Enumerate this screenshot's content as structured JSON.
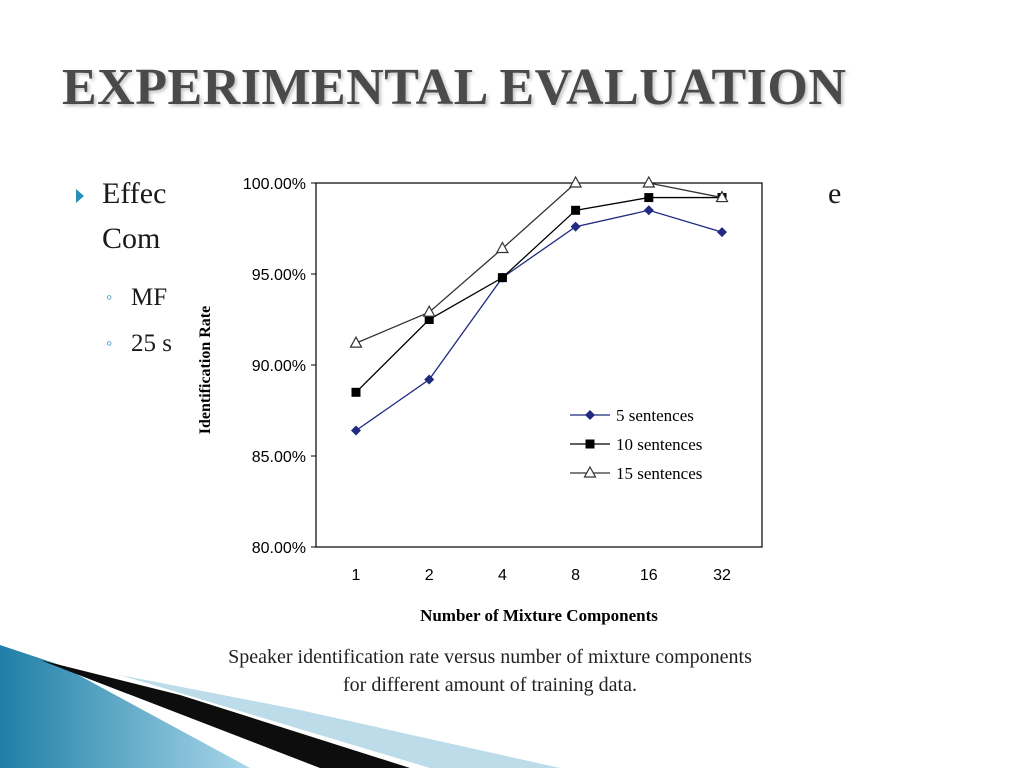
{
  "slide": {
    "title": "EXPERIMENTAL EVALUATION",
    "bullet_main_start": "Effec",
    "bullet_main_tail": "e",
    "bullet_main_line2": "Com",
    "sub_bullets": [
      "MF",
      "25 s"
    ],
    "colors": {
      "title": "#4a4a4a",
      "accent": "#2a8fb8",
      "decor_blue": "#1f7fa6"
    }
  },
  "chart_data": {
    "type": "line",
    "x": [
      "1",
      "2",
      "4",
      "8",
      "16",
      "32"
    ],
    "series": [
      {
        "name": "5 sentences",
        "marker": "diamond",
        "color": "#1f2a80",
        "values": [
          86.4,
          89.2,
          94.8,
          97.6,
          98.5,
          97.3
        ]
      },
      {
        "name": "10 sentences",
        "marker": "square",
        "color": "#000000",
        "values": [
          88.5,
          92.5,
          94.8,
          98.5,
          99.2,
          99.2
        ]
      },
      {
        "name": "15 sentences",
        "marker": "triangle",
        "color": "#333333",
        "values": [
          91.2,
          92.9,
          96.4,
          100.0,
          100.0,
          99.2
        ]
      }
    ],
    "yticks": [
      "80.00%",
      "85.00%",
      "90.00%",
      "95.00%",
      "100.00%"
    ],
    "ylim": [
      80,
      100
    ],
    "xlabel": "Number of Mixture Components",
    "ylabel": "Identification Rate",
    "legend_position": "lower-right",
    "caption_line1": "Speaker identification rate versus number of mixture components",
    "caption_line2": "for different amount of training data."
  }
}
